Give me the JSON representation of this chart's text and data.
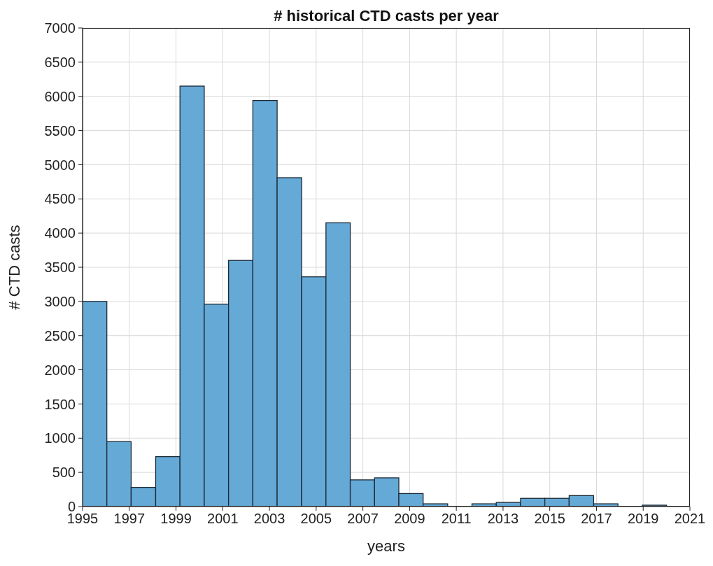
{
  "chart_data": {
    "type": "histogram",
    "title": "# historical CTD casts per year",
    "xlabel": "years",
    "ylabel": "# CTD casts",
    "bins": [
      1995,
      1996.04,
      1997.08,
      1998.13,
      1999.17,
      2000.21,
      2001.25,
      2002.29,
      2003.33,
      2004.38,
      2005.42,
      2006.46,
      2007.5,
      2008.54,
      2009.58,
      2010.63,
      2011.67,
      2012.71,
      2013.75,
      2014.79,
      2015.83,
      2016.88,
      2017.92,
      2018.96,
      2020
    ],
    "values": [
      3000,
      950,
      280,
      730,
      6150,
      2960,
      3600,
      5940,
      4810,
      3360,
      4150,
      390,
      420,
      190,
      40,
      0,
      40,
      60,
      120,
      120,
      160,
      40,
      0,
      20
    ],
    "color": "#65a9d7",
    "xlim": [
      1995,
      2021
    ],
    "xticks": [
      1995,
      1997,
      1999,
      2001,
      2003,
      2005,
      2007,
      2009,
      2011,
      2013,
      2015,
      2017,
      2019,
      2021
    ],
    "ylim": [
      0,
      7000
    ],
    "yticks": [
      0,
      500,
      1000,
      1500,
      2000,
      2500,
      3000,
      3500,
      4000,
      4500,
      5000,
      5500,
      6000,
      6500,
      7000
    ],
    "grid": true,
    "legend": false
  }
}
